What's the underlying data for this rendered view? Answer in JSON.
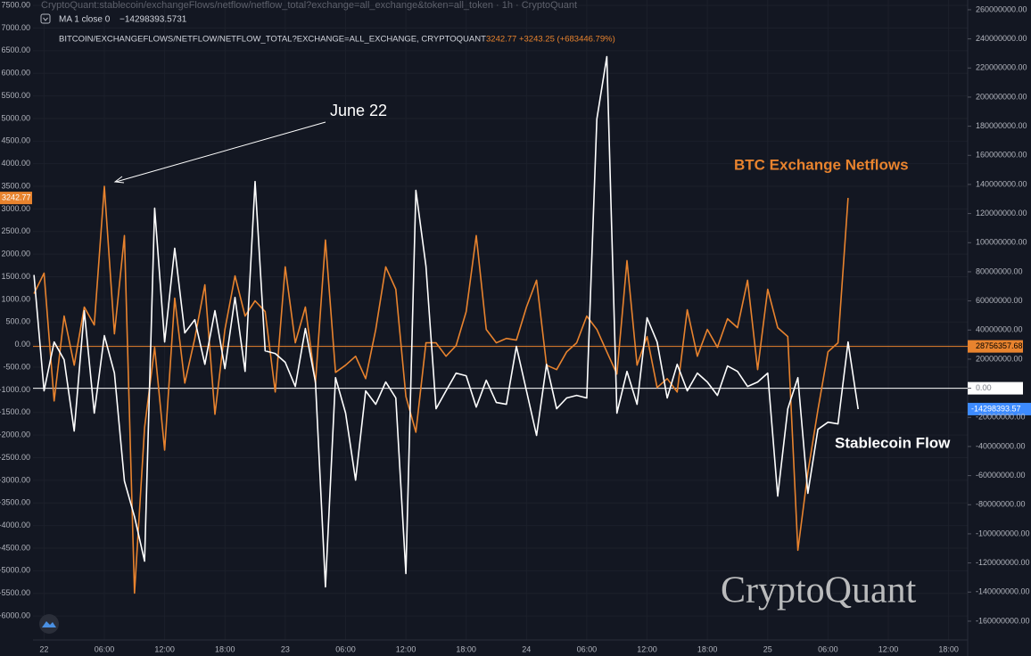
{
  "chart_data": {
    "type": "line",
    "header": "CryptoQuant:stablecoin/exchangeFlows/netflow/netflow_total?exchange=all_exchange&token=all_token · 1h · CryptoQuant",
    "ma_label": "MA 1 close 0",
    "ma_value": "−14298393.5731",
    "symbol": "BITCOIN/EXCHANGEFLOWS/NETFLOW/NETFLOW_TOTAL?EXCHANGE=ALL_EXCHANGE, CRYPTOQUANT",
    "symbol_quote": "3242.77 +3243.25 (+683446.79%)",
    "annotation": "June 22",
    "watermark": "CryptoQuant",
    "grid": true,
    "categories": [
      null,
      "22",
      null,
      null,
      null,
      null,
      null,
      "06:00",
      null,
      null,
      null,
      null,
      null,
      "12:00",
      null,
      null,
      null,
      null,
      null,
      "18:00",
      null,
      null,
      null,
      null,
      null,
      "23",
      null,
      null,
      null,
      null,
      null,
      "06:00",
      null,
      null,
      null,
      null,
      null,
      "12:00",
      null,
      null,
      null,
      null,
      null,
      "18:00",
      null,
      null,
      null,
      null,
      null,
      "24",
      null,
      null,
      null,
      null,
      null,
      "06:00",
      null,
      null,
      null,
      null,
      null,
      "12:00",
      null,
      null,
      null,
      null,
      null,
      "18:00",
      null,
      null,
      null,
      null,
      null,
      "25",
      null,
      null,
      null,
      null,
      null,
      "06:00",
      null,
      null,
      null,
      null,
      null,
      "12:00",
      null,
      null,
      null,
      null,
      null,
      "18:00",
      null
    ],
    "series": [
      {
        "name": "BTC Exchange Netflows",
        "color": "#e8832e",
        "axis": "y",
        "values": [
          1126,
          1580,
          -1245,
          632,
          -455,
          830,
          435,
          3500,
          237,
          2411,
          -5493,
          -1838,
          -60,
          -2332,
          1027,
          -850,
          138,
          1324,
          -1541,
          336,
          1521,
          632,
          968,
          731,
          -1047,
          1719,
          40,
          830,
          -850,
          2312,
          -613,
          -455,
          -257,
          -751,
          336,
          1719,
          1225,
          -1146,
          -1937,
          40,
          40,
          -257,
          -20,
          731,
          2411,
          336,
          40,
          138,
          99,
          830,
          1423,
          -455,
          -553,
          -158,
          40,
          632,
          336,
          -158,
          -652,
          1857,
          -455,
          178,
          -949,
          -751,
          -1047,
          771,
          -257,
          336,
          -60,
          573,
          375,
          1423,
          -553,
          1225,
          375,
          178,
          -4545,
          -2826,
          -1442,
          -158,
          40,
          3242.77,
          null,
          null,
          null,
          null,
          null,
          null,
          null,
          null,
          null,
          null,
          null
        ]
      },
      {
        "name": "Stablecoin Flow",
        "color": "#ffffff",
        "axis": "y2",
        "values": [
          77800000,
          -1800000,
          31800000,
          19600000,
          -29400000,
          53300000,
          -17100000,
          36100000,
          10400000,
          -63700000,
          -88200000,
          -118800000,
          123700000,
          31800000,
          96100000,
          38000000,
          47100000,
          16500000,
          53300000,
          13500000,
          62400000,
          11600000,
          142000000,
          25700000,
          23900000,
          17800000,
          1200000,
          41000000,
          4300000,
          -136500000,
          7300000,
          -17100000,
          -63100000,
          -1800000,
          -11000000,
          4300000,
          -6700000,
          -127300000,
          135900000,
          83900000,
          -14100000,
          -1800000,
          10400000,
          8600000,
          -12900000,
          5500000,
          -9800000,
          -11000000,
          28800000,
          -1800000,
          -32400000,
          16500000,
          -14100000,
          -6700000,
          -4900000,
          -6700000,
          184900000,
          227800000,
          -17100000,
          11600000,
          -11000000,
          48400000,
          31800000,
          -6700000,
          16500000,
          -1800000,
          10400000,
          4300000,
          -4900000,
          15300000,
          11600000,
          1200000,
          4300000,
          10400000,
          -74100000,
          -14100000,
          7300000,
          -72200000,
          -28200000,
          -23300000,
          -24500000,
          31800000,
          -14298393.57,
          null,
          null,
          null,
          null,
          null,
          null,
          null,
          null,
          null,
          null
        ]
      }
    ],
    "price_lines": [
      {
        "value": 28756357.68,
        "color": "#e8832e"
      },
      {
        "value": 0,
        "label": "0.00",
        "color": "#ffffff"
      }
    ],
    "ylim": [
      -6530,
      7620
    ],
    "yticks": [
      {
        "value": 7500,
        "label": "7500.00"
      },
      {
        "value": 7000,
        "label": "7000.00"
      },
      {
        "value": 6500,
        "label": "6500.00"
      },
      {
        "value": 6000,
        "label": "6000.00"
      },
      {
        "value": 5500,
        "label": "5500.00"
      },
      {
        "value": 5000,
        "label": "5000.00"
      },
      {
        "value": 4500,
        "label": "4500.00"
      },
      {
        "value": 4000,
        "label": "4000.00"
      },
      {
        "value": 3500,
        "label": "3500.00"
      },
      {
        "value": 3000,
        "label": "3000.00"
      },
      {
        "value": 2500,
        "label": "2500.00"
      },
      {
        "value": 2000,
        "label": "2000.00"
      },
      {
        "value": 1500,
        "label": "1500.00"
      },
      {
        "value": 1000,
        "label": "1000.00"
      },
      {
        "value": 500,
        "label": "500.00"
      },
      {
        "value": 0,
        "label": "0.00"
      },
      {
        "value": -500,
        "label": "-500.00"
      },
      {
        "value": -1000,
        "label": "-1000.00"
      },
      {
        "value": -1500,
        "label": "-1500.00"
      },
      {
        "value": -2000,
        "label": "-2000.00"
      },
      {
        "value": -2500,
        "label": "-2500.00"
      },
      {
        "value": -3000,
        "label": "-3000.00"
      },
      {
        "value": -3500,
        "label": "-3500.00"
      },
      {
        "value": -4000,
        "label": "-4000.00"
      },
      {
        "value": -4500,
        "label": "-4500.00"
      },
      {
        "value": -5000,
        "label": "-5000.00"
      },
      {
        "value": -5500,
        "label": "-5500.00"
      },
      {
        "value": -6000,
        "label": "-6000.00"
      }
    ],
    "y2lim": [
      -172900000,
      266700000
    ],
    "y2ticks": [
      {
        "value": 260000000,
        "label": "260000000.00"
      },
      {
        "value": 240000000,
        "label": "240000000.00"
      },
      {
        "value": 220000000,
        "label": "220000000.00"
      },
      {
        "value": 200000000,
        "label": "200000000.00"
      },
      {
        "value": 180000000,
        "label": "180000000.00"
      },
      {
        "value": 160000000,
        "label": "160000000.00"
      },
      {
        "value": 140000000,
        "label": "140000000.00"
      },
      {
        "value": 120000000,
        "label": "120000000.00"
      },
      {
        "value": 100000000,
        "label": "100000000.00"
      },
      {
        "value": 80000000,
        "label": "80000000.00"
      },
      {
        "value": 60000000,
        "label": "60000000.00"
      },
      {
        "value": 40000000,
        "label": "40000000.00"
      },
      {
        "value": 20000000,
        "label": "20000000.00"
      },
      {
        "value": 0,
        "label": "0.00"
      },
      {
        "value": -20000000,
        "label": "-20000000.00"
      },
      {
        "value": -40000000,
        "label": "-40000000.00"
      },
      {
        "value": -60000000,
        "label": "-60000000.00"
      },
      {
        "value": -80000000,
        "label": "-80000000.00"
      },
      {
        "value": -100000000,
        "label": "-100000000.00"
      },
      {
        "value": -120000000,
        "label": "-120000000.00"
      },
      {
        "value": -140000000,
        "label": "-140000000.00"
      },
      {
        "value": -160000000,
        "label": "-160000000.00"
      }
    ]
  }
}
